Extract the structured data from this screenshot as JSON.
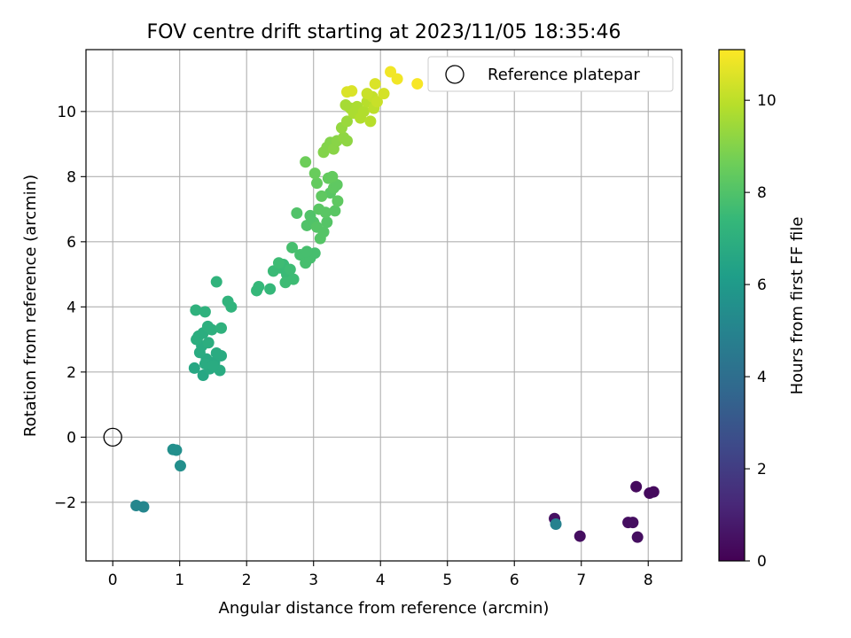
{
  "chart_data": {
    "type": "scatter",
    "title": "FOV centre drift starting at 2023/11/05 18:35:46",
    "xlabel": "Angular distance from reference (arcmin)",
    "ylabel": "Rotation from reference (arcmin)",
    "xlim": [
      -0.4,
      8.5
    ],
    "ylim": [
      -3.8,
      11.9
    ],
    "xticks": [
      0,
      1,
      2,
      3,
      4,
      5,
      6,
      7,
      8
    ],
    "yticks": [
      -2,
      0,
      2,
      4,
      6,
      8,
      10
    ],
    "xtick_labels": [
      "0",
      "1",
      "2",
      "3",
      "4",
      "5",
      "6",
      "7",
      "8"
    ],
    "ytick_labels": [
      "−2",
      "0",
      "2",
      "4",
      "6",
      "8",
      "10"
    ],
    "grid": true,
    "legend": {
      "placement": "top-right",
      "entries": [
        "Reference platepar"
      ]
    },
    "reference_point": {
      "name": "Reference platepar",
      "x": 0,
      "y": 0
    },
    "colorbar": {
      "label": "Hours from first FF file",
      "colormap": "viridis",
      "range": [
        0,
        11.1
      ],
      "ticks": [
        0,
        2,
        4,
        6,
        8,
        10
      ],
      "tick_labels": [
        "0",
        "2",
        "4",
        "6",
        "8",
        "10"
      ]
    },
    "colormap_stops": [
      "#440154",
      "#482878",
      "#3e4989",
      "#31688e",
      "#26828e",
      "#1f9e89",
      "#35b779",
      "#6ece58",
      "#b5de2b",
      "#fde725"
    ],
    "points": [
      {
        "x": 7.82,
        "y": -1.52,
        "h": 0.3
      },
      {
        "x": 8.02,
        "y": -1.72,
        "h": 0.3
      },
      {
        "x": 8.08,
        "y": -1.68,
        "h": 0.3
      },
      {
        "x": 7.7,
        "y": -2.62,
        "h": 0.4
      },
      {
        "x": 7.77,
        "y": -2.62,
        "h": 0.4
      },
      {
        "x": 6.98,
        "y": -3.04,
        "h": 0.4
      },
      {
        "x": 7.84,
        "y": -3.07,
        "h": 0.4
      },
      {
        "x": 6.6,
        "y": -2.5,
        "h": 0.5
      },
      {
        "x": 6.62,
        "y": -2.67,
        "h": 4.9
      },
      {
        "x": 0.35,
        "y": -2.1,
        "h": 5.1
      },
      {
        "x": 0.46,
        "y": -2.14,
        "h": 5.1
      },
      {
        "x": 0.9,
        "y": -0.38,
        "h": 5.5
      },
      {
        "x": 0.95,
        "y": -0.4,
        "h": 5.5
      },
      {
        "x": 1.01,
        "y": -0.88,
        "h": 5.5
      },
      {
        "x": 1.22,
        "y": 2.12,
        "h": 6.6
      },
      {
        "x": 1.35,
        "y": 1.9,
        "h": 6.6
      },
      {
        "x": 1.45,
        "y": 2.1,
        "h": 6.7
      },
      {
        "x": 1.52,
        "y": 2.3,
        "h": 6.7
      },
      {
        "x": 1.4,
        "y": 2.4,
        "h": 6.7
      },
      {
        "x": 1.3,
        "y": 2.6,
        "h": 6.8
      },
      {
        "x": 1.6,
        "y": 2.05,
        "h": 6.8
      },
      {
        "x": 1.62,
        "y": 2.5,
        "h": 6.8
      },
      {
        "x": 1.55,
        "y": 2.58,
        "h": 6.8
      },
      {
        "x": 1.38,
        "y": 2.25,
        "h": 6.8
      },
      {
        "x": 1.33,
        "y": 2.8,
        "h": 6.8
      },
      {
        "x": 1.43,
        "y": 2.9,
        "h": 6.9
      },
      {
        "x": 1.25,
        "y": 3.0,
        "h": 6.9
      },
      {
        "x": 1.28,
        "y": 3.1,
        "h": 6.9
      },
      {
        "x": 1.35,
        "y": 3.2,
        "h": 6.9
      },
      {
        "x": 1.42,
        "y": 3.4,
        "h": 7.0
      },
      {
        "x": 1.48,
        "y": 3.3,
        "h": 7.0
      },
      {
        "x": 1.24,
        "y": 3.9,
        "h": 7.1
      },
      {
        "x": 1.38,
        "y": 3.85,
        "h": 7.1
      },
      {
        "x": 1.62,
        "y": 3.35,
        "h": 7.1
      },
      {
        "x": 1.55,
        "y": 4.77,
        "h": 7.2
      },
      {
        "x": 1.72,
        "y": 4.17,
        "h": 7.2
      },
      {
        "x": 1.77,
        "y": 4.0,
        "h": 7.2
      },
      {
        "x": 1.5,
        "y": 2.2,
        "h": 6.8
      },
      {
        "x": 2.15,
        "y": 4.5,
        "h": 7.4
      },
      {
        "x": 2.18,
        "y": 4.62,
        "h": 7.4
      },
      {
        "x": 2.35,
        "y": 4.55,
        "h": 7.4
      },
      {
        "x": 2.4,
        "y": 5.1,
        "h": 7.5
      },
      {
        "x": 2.5,
        "y": 5.2,
        "h": 7.5
      },
      {
        "x": 2.55,
        "y": 5.3,
        "h": 7.5
      },
      {
        "x": 2.6,
        "y": 5.0,
        "h": 7.5
      },
      {
        "x": 2.65,
        "y": 5.15,
        "h": 7.6
      },
      {
        "x": 2.58,
        "y": 4.75,
        "h": 7.6
      },
      {
        "x": 2.7,
        "y": 4.85,
        "h": 7.6
      },
      {
        "x": 2.48,
        "y": 5.35,
        "h": 7.6
      },
      {
        "x": 2.68,
        "y": 5.82,
        "h": 7.8
      },
      {
        "x": 2.8,
        "y": 5.6,
        "h": 7.8
      },
      {
        "x": 2.88,
        "y": 5.35,
        "h": 7.8
      },
      {
        "x": 2.95,
        "y": 5.5,
        "h": 7.8
      },
      {
        "x": 3.02,
        "y": 5.65,
        "h": 7.8
      },
      {
        "x": 2.9,
        "y": 5.7,
        "h": 7.8
      },
      {
        "x": 2.75,
        "y": 6.88,
        "h": 8.0
      },
      {
        "x": 2.9,
        "y": 6.5,
        "h": 8.0
      },
      {
        "x": 2.95,
        "y": 6.8,
        "h": 8.0
      },
      {
        "x": 3.0,
        "y": 6.6,
        "h": 8.0
      },
      {
        "x": 3.05,
        "y": 6.45,
        "h": 8.1
      },
      {
        "x": 3.1,
        "y": 6.1,
        "h": 8.1
      },
      {
        "x": 3.15,
        "y": 6.3,
        "h": 8.1
      },
      {
        "x": 3.2,
        "y": 6.6,
        "h": 8.1
      },
      {
        "x": 3.08,
        "y": 7.0,
        "h": 8.2
      },
      {
        "x": 3.18,
        "y": 6.9,
        "h": 8.2
      },
      {
        "x": 3.25,
        "y": 7.5,
        "h": 8.2
      },
      {
        "x": 3.32,
        "y": 6.95,
        "h": 8.2
      },
      {
        "x": 3.36,
        "y": 7.25,
        "h": 8.3
      },
      {
        "x": 3.3,
        "y": 7.65,
        "h": 8.3
      },
      {
        "x": 3.35,
        "y": 7.75,
        "h": 8.3
      },
      {
        "x": 3.12,
        "y": 7.4,
        "h": 8.3
      },
      {
        "x": 3.05,
        "y": 7.8,
        "h": 8.4
      },
      {
        "x": 3.22,
        "y": 7.95,
        "h": 8.4
      },
      {
        "x": 3.28,
        "y": 8.0,
        "h": 8.4
      },
      {
        "x": 3.02,
        "y": 8.1,
        "h": 8.5
      },
      {
        "x": 2.88,
        "y": 8.45,
        "h": 8.6
      },
      {
        "x": 3.15,
        "y": 8.75,
        "h": 9.0
      },
      {
        "x": 3.2,
        "y": 8.9,
        "h": 9.0
      },
      {
        "x": 3.25,
        "y": 9.05,
        "h": 9.0
      },
      {
        "x": 3.3,
        "y": 8.85,
        "h": 9.1
      },
      {
        "x": 3.35,
        "y": 9.1,
        "h": 9.1
      },
      {
        "x": 3.45,
        "y": 9.2,
        "h": 9.2
      },
      {
        "x": 3.5,
        "y": 9.1,
        "h": 9.2
      },
      {
        "x": 3.42,
        "y": 9.5,
        "h": 9.3
      },
      {
        "x": 3.5,
        "y": 9.7,
        "h": 9.4
      },
      {
        "x": 3.48,
        "y": 10.2,
        "h": 9.6
      },
      {
        "x": 3.55,
        "y": 10.1,
        "h": 9.6
      },
      {
        "x": 3.6,
        "y": 9.95,
        "h": 9.7
      },
      {
        "x": 3.65,
        "y": 10.15,
        "h": 9.7
      },
      {
        "x": 3.7,
        "y": 9.8,
        "h": 9.8
      },
      {
        "x": 3.75,
        "y": 10.0,
        "h": 9.8
      },
      {
        "x": 3.8,
        "y": 10.3,
        "h": 9.9
      },
      {
        "x": 3.85,
        "y": 9.7,
        "h": 9.9
      },
      {
        "x": 3.9,
        "y": 10.1,
        "h": 10.0
      },
      {
        "x": 3.88,
        "y": 10.45,
        "h": 10.1
      },
      {
        "x": 3.95,
        "y": 10.3,
        "h": 10.2
      },
      {
        "x": 3.8,
        "y": 10.55,
        "h": 10.2
      },
      {
        "x": 4.05,
        "y": 10.55,
        "h": 10.4
      },
      {
        "x": 3.92,
        "y": 10.85,
        "h": 10.5
      },
      {
        "x": 3.5,
        "y": 10.6,
        "h": 10.5
      },
      {
        "x": 3.57,
        "y": 10.63,
        "h": 10.5
      },
      {
        "x": 4.15,
        "y": 11.22,
        "h": 10.9
      },
      {
        "x": 4.25,
        "y": 11.0,
        "h": 10.9
      },
      {
        "x": 4.55,
        "y": 10.85,
        "h": 11.0
      }
    ]
  }
}
